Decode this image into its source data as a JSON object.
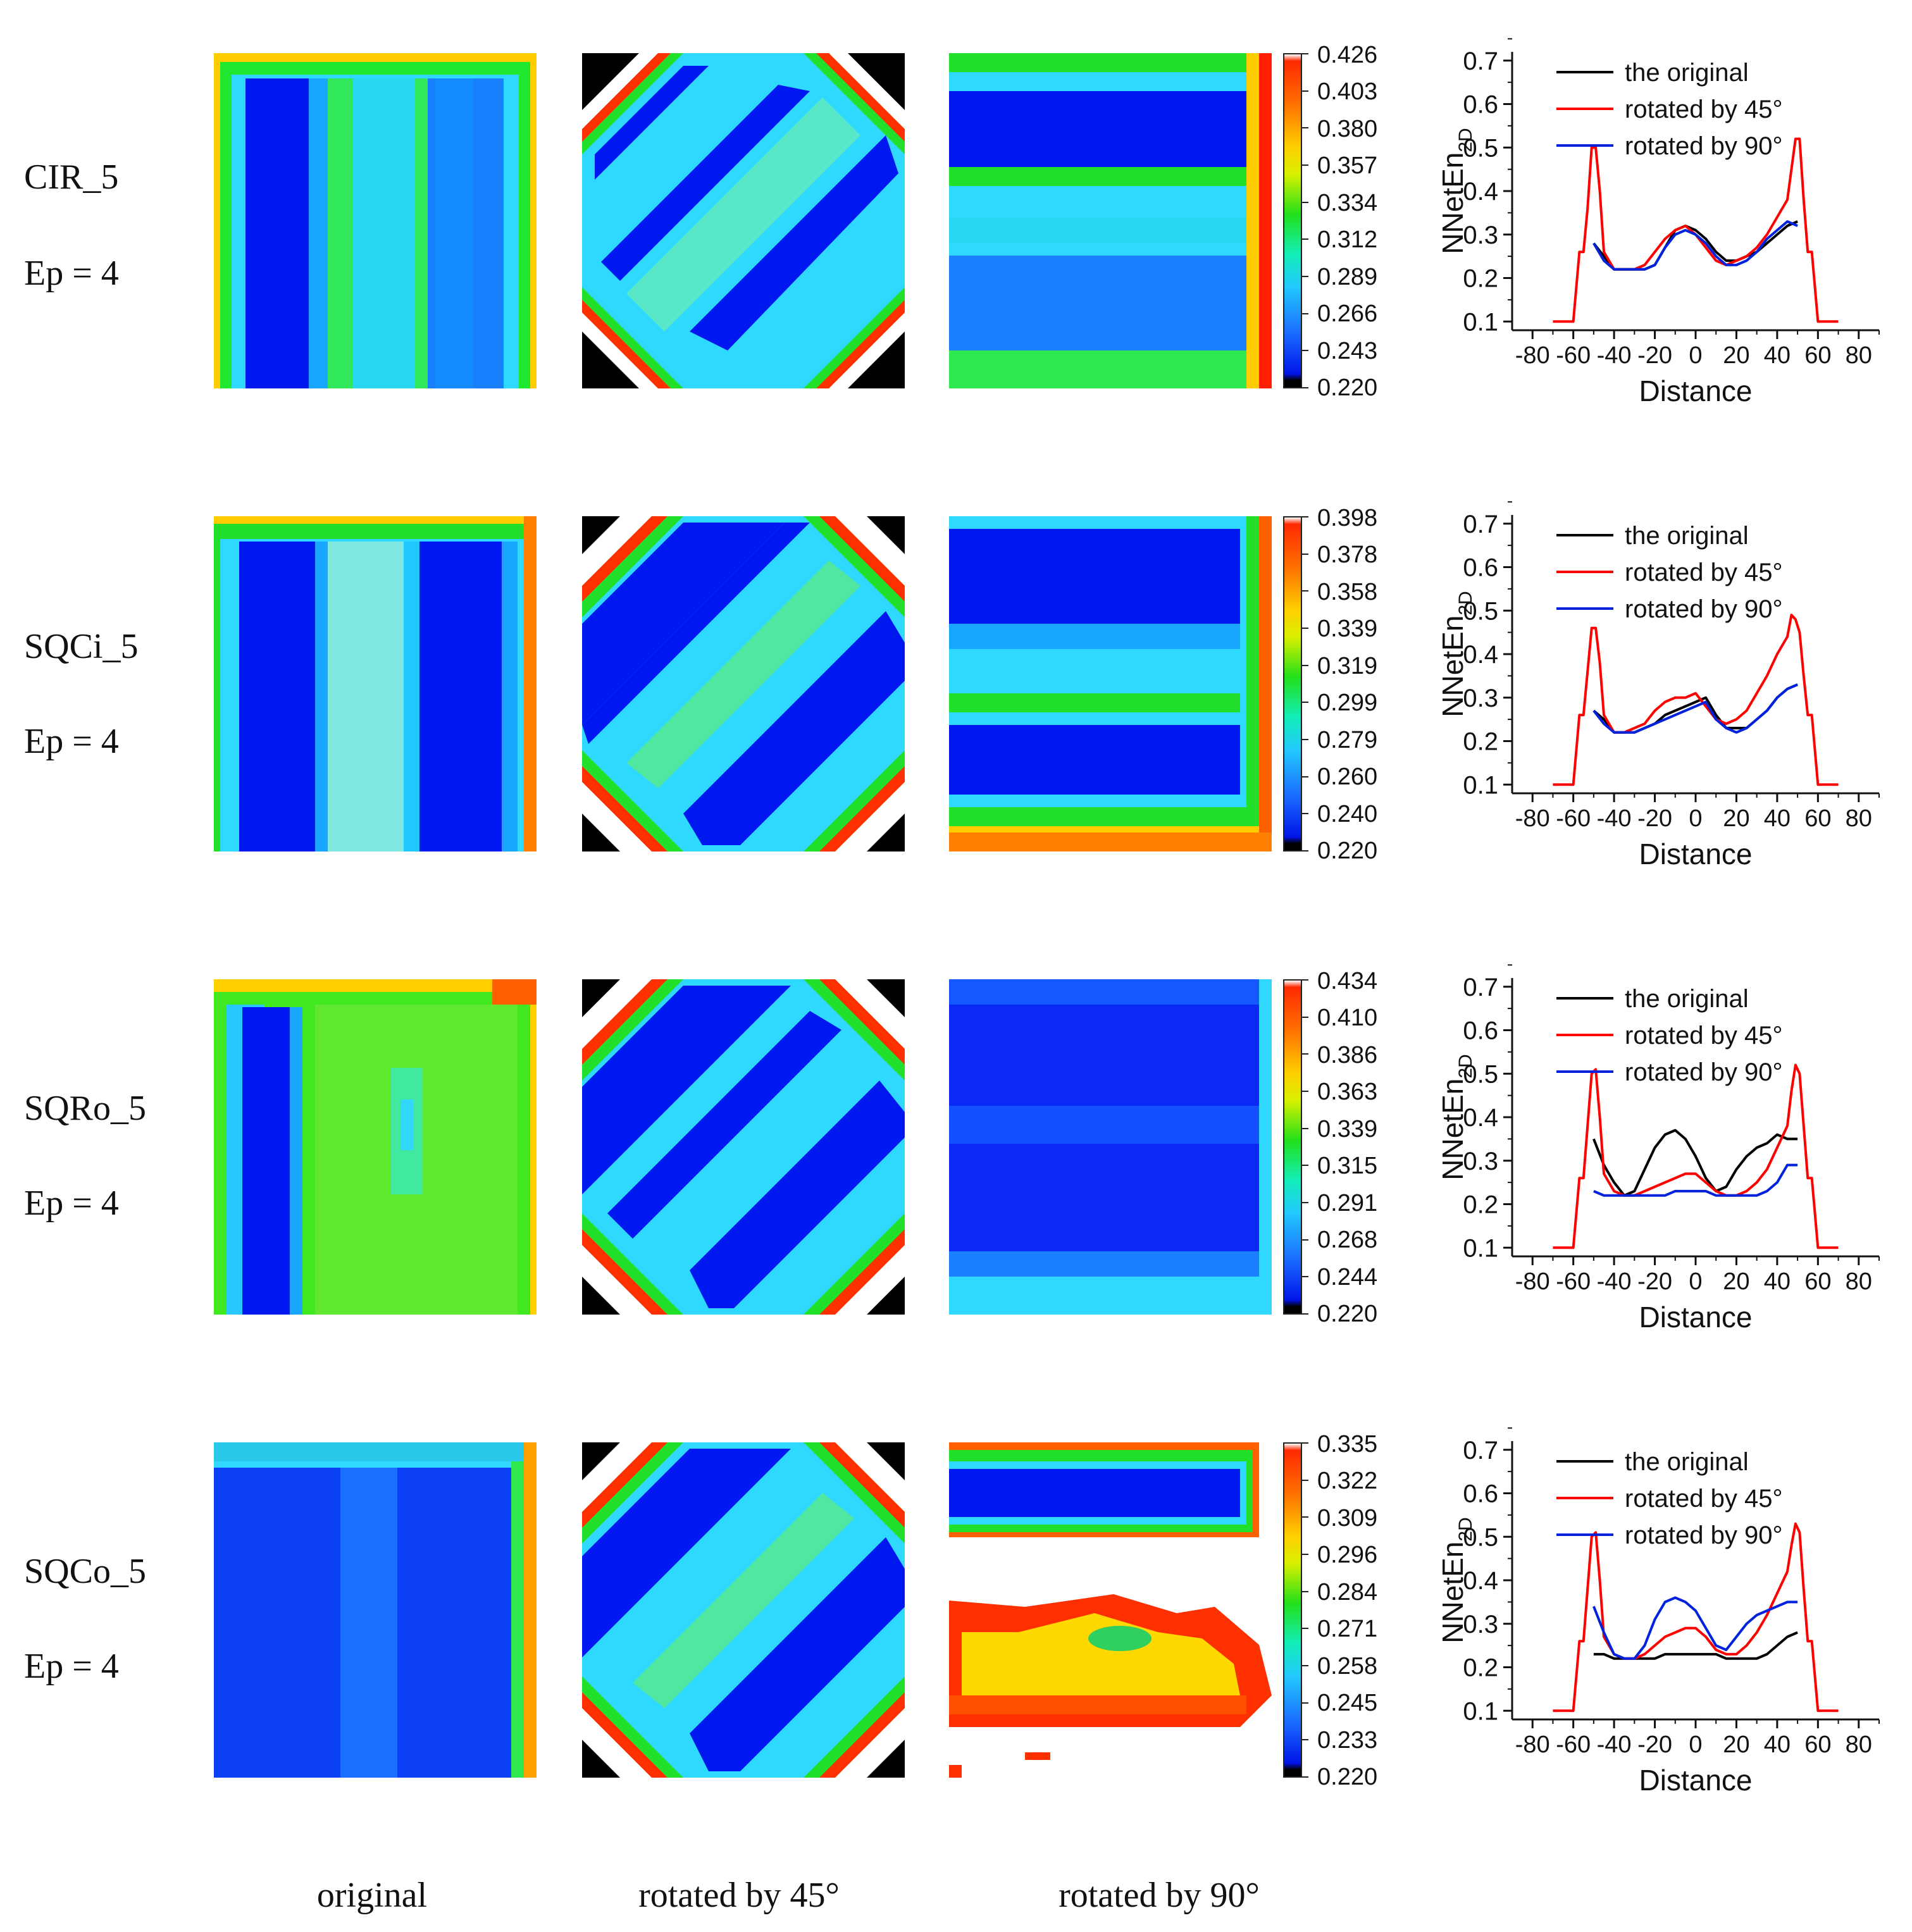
{
  "column_labels": [
    "original",
    "rotated by 45°",
    "rotated by 90°"
  ],
  "rows": [
    {
      "name": "CIR_5",
      "ep": "Ep = 4",
      "colorbar": [
        "0.426",
        "0.403",
        "0.380",
        "0.357",
        "0.334",
        "0.312",
        "0.289",
        "0.266",
        "0.243",
        "0.220"
      ]
    },
    {
      "name": "SQCi_5",
      "ep": "Ep = 4",
      "colorbar": [
        "0.398",
        "0.378",
        "0.358",
        "0.339",
        "0.319",
        "0.299",
        "0.279",
        "0.260",
        "0.240",
        "0.220"
      ]
    },
    {
      "name": "SQRo_5",
      "ep": "Ep = 4",
      "colorbar": [
        "0.434",
        "0.410",
        "0.386",
        "0.363",
        "0.339",
        "0.315",
        "0.291",
        "0.268",
        "0.244",
        "0.220"
      ]
    },
    {
      "name": "SQCo_5",
      "ep": "Ep = 4",
      "colorbar": [
        "0.335",
        "0.322",
        "0.309",
        "0.296",
        "0.284",
        "0.271",
        "0.258",
        "0.245",
        "0.233",
        "0.220"
      ]
    }
  ],
  "colors": {
    "original": "#000000",
    "rot45": "#ff0000",
    "rot90": "#0022dd"
  },
  "chart_data": [
    {
      "type": "line",
      "title": "CIR_5 Ep = 4",
      "xlabel": "Distance",
      "ylabel": "NNetEn",
      "ylabel_sub": "2D",
      "xticks": [
        "-80",
        "-60",
        "-40",
        "-20",
        "0",
        "20",
        "40",
        "60",
        "80"
      ],
      "yticks": [
        "0.1",
        "0.2",
        "0.3",
        "0.4",
        "0.5",
        "0.6",
        "0.7"
      ],
      "xlim": [
        -90,
        90
      ],
      "ylim": [
        0.08,
        0.72
      ],
      "series": [
        {
          "name": "the original",
          "color": "#000000",
          "x": [
            -50,
            -45,
            -40,
            -35,
            -30,
            -25,
            -20,
            -15,
            -10,
            -5,
            0,
            5,
            10,
            15,
            20,
            25,
            30,
            35,
            40,
            45,
            50
          ],
          "y": [
            0.28,
            0.25,
            0.22,
            0.22,
            0.22,
            0.22,
            0.23,
            0.27,
            0.31,
            0.32,
            0.31,
            0.29,
            0.26,
            0.24,
            0.24,
            0.25,
            0.26,
            0.28,
            0.3,
            0.32,
            0.33
          ]
        },
        {
          "name": "rotated by 45°",
          "color": "#ff0000",
          "x": [
            -70,
            -60,
            -57,
            -55,
            -53,
            -51,
            -49,
            -47,
            -45,
            -40,
            -35,
            -30,
            -25,
            -20,
            -15,
            -10,
            -5,
            0,
            5,
            10,
            15,
            20,
            25,
            30,
            35,
            40,
            45,
            47,
            49,
            51,
            53,
            55,
            57,
            60,
            70
          ],
          "y": [
            0.1,
            0.1,
            0.26,
            0.26,
            0.36,
            0.5,
            0.5,
            0.4,
            0.26,
            0.22,
            0.22,
            0.22,
            0.23,
            0.26,
            0.29,
            0.31,
            0.32,
            0.3,
            0.27,
            0.24,
            0.23,
            0.24,
            0.25,
            0.27,
            0.3,
            0.34,
            0.38,
            0.45,
            0.52,
            0.52,
            0.38,
            0.26,
            0.26,
            0.1,
            0.1
          ]
        },
        {
          "name": "rotated by 90°",
          "color": "#0022dd",
          "x": [
            -50,
            -45,
            -40,
            -35,
            -30,
            -25,
            -20,
            -15,
            -10,
            -5,
            0,
            5,
            10,
            15,
            20,
            25,
            30,
            35,
            40,
            45,
            50
          ],
          "y": [
            0.28,
            0.24,
            0.22,
            0.22,
            0.22,
            0.22,
            0.23,
            0.27,
            0.3,
            0.31,
            0.3,
            0.28,
            0.25,
            0.23,
            0.23,
            0.24,
            0.26,
            0.29,
            0.31,
            0.33,
            0.32
          ]
        }
      ]
    },
    {
      "type": "line",
      "title": "SQCi_5 Ep = 4",
      "xlabel": "Distance",
      "ylabel": "NNetEn",
      "ylabel_sub": "2D",
      "xticks": [
        "-80",
        "-60",
        "-40",
        "-20",
        "0",
        "20",
        "40",
        "60",
        "80"
      ],
      "yticks": [
        "0.1",
        "0.2",
        "0.3",
        "0.4",
        "0.5",
        "0.6",
        "0.7"
      ],
      "xlim": [
        -90,
        90
      ],
      "ylim": [
        0.08,
        0.72
      ],
      "series": [
        {
          "name": "the original",
          "color": "#000000",
          "x": [
            -50,
            -45,
            -40,
            -35,
            -30,
            -25,
            -20,
            -15,
            -10,
            -5,
            0,
            5,
            10,
            15,
            20,
            25,
            30,
            35,
            40,
            45,
            50
          ],
          "y": [
            0.27,
            0.25,
            0.22,
            0.22,
            0.22,
            0.23,
            0.24,
            0.26,
            0.27,
            0.28,
            0.29,
            0.3,
            0.26,
            0.23,
            0.23,
            0.23,
            0.25,
            0.27,
            0.3,
            0.32,
            0.33
          ]
        },
        {
          "name": "rotated by 45°",
          "color": "#ff0000",
          "x": [
            -70,
            -60,
            -57,
            -55,
            -53,
            -51,
            -49,
            -47,
            -45,
            -40,
            -35,
            -30,
            -25,
            -20,
            -15,
            -10,
            -5,
            0,
            5,
            10,
            15,
            20,
            25,
            30,
            35,
            40,
            45,
            47,
            49,
            51,
            53,
            55,
            57,
            60,
            70
          ],
          "y": [
            0.1,
            0.1,
            0.26,
            0.26,
            0.36,
            0.46,
            0.46,
            0.38,
            0.26,
            0.22,
            0.22,
            0.23,
            0.24,
            0.27,
            0.29,
            0.3,
            0.3,
            0.31,
            0.28,
            0.25,
            0.24,
            0.25,
            0.27,
            0.31,
            0.35,
            0.4,
            0.44,
            0.49,
            0.48,
            0.45,
            0.35,
            0.26,
            0.26,
            0.1,
            0.1
          ]
        },
        {
          "name": "rotated by 90°",
          "color": "#0022dd",
          "x": [
            -50,
            -45,
            -40,
            -35,
            -30,
            -25,
            -20,
            -15,
            -10,
            -5,
            0,
            5,
            10,
            15,
            20,
            25,
            30,
            35,
            40,
            45,
            50
          ],
          "y": [
            0.27,
            0.24,
            0.22,
            0.22,
            0.22,
            0.23,
            0.24,
            0.25,
            0.26,
            0.27,
            0.28,
            0.29,
            0.25,
            0.23,
            0.22,
            0.23,
            0.25,
            0.27,
            0.3,
            0.32,
            0.33
          ]
        }
      ]
    },
    {
      "type": "line",
      "title": "SQRo_5 Ep = 4",
      "xlabel": "Distance",
      "ylabel": "NNetEn",
      "ylabel_sub": "2D",
      "xticks": [
        "-80",
        "-60",
        "-40",
        "-20",
        "0",
        "20",
        "40",
        "60",
        "80"
      ],
      "yticks": [
        "0.1",
        "0.2",
        "0.3",
        "0.4",
        "0.5",
        "0.6",
        "0.7"
      ],
      "xlim": [
        -90,
        90
      ],
      "ylim": [
        0.08,
        0.72
      ],
      "series": [
        {
          "name": "the original",
          "color": "#000000",
          "x": [
            -50,
            -45,
            -40,
            -35,
            -30,
            -25,
            -20,
            -15,
            -10,
            -5,
            0,
            5,
            10,
            15,
            20,
            25,
            30,
            35,
            40,
            45,
            50
          ],
          "y": [
            0.35,
            0.29,
            0.25,
            0.22,
            0.23,
            0.28,
            0.33,
            0.36,
            0.37,
            0.35,
            0.31,
            0.26,
            0.23,
            0.24,
            0.28,
            0.31,
            0.33,
            0.34,
            0.36,
            0.35,
            0.35
          ]
        },
        {
          "name": "rotated by 45°",
          "color": "#ff0000",
          "x": [
            -70,
            -60,
            -57,
            -55,
            -53,
            -51,
            -49,
            -47,
            -45,
            -40,
            -35,
            -30,
            -25,
            -20,
            -15,
            -10,
            -5,
            0,
            5,
            10,
            15,
            20,
            25,
            30,
            35,
            40,
            45,
            47,
            49,
            51,
            53,
            55,
            57,
            60,
            70
          ],
          "y": [
            0.1,
            0.1,
            0.26,
            0.26,
            0.38,
            0.5,
            0.51,
            0.4,
            0.27,
            0.23,
            0.22,
            0.22,
            0.23,
            0.24,
            0.25,
            0.26,
            0.27,
            0.27,
            0.25,
            0.23,
            0.22,
            0.22,
            0.23,
            0.25,
            0.28,
            0.33,
            0.38,
            0.46,
            0.52,
            0.5,
            0.38,
            0.26,
            0.26,
            0.1,
            0.1
          ]
        },
        {
          "name": "rotated by 90°",
          "color": "#0022dd",
          "x": [
            -50,
            -45,
            -40,
            -35,
            -30,
            -25,
            -20,
            -15,
            -10,
            -5,
            0,
            5,
            10,
            15,
            20,
            25,
            30,
            35,
            40,
            45,
            50
          ],
          "y": [
            0.23,
            0.22,
            0.22,
            0.22,
            0.22,
            0.22,
            0.22,
            0.22,
            0.23,
            0.23,
            0.23,
            0.23,
            0.22,
            0.22,
            0.22,
            0.22,
            0.22,
            0.23,
            0.25,
            0.29,
            0.29
          ]
        }
      ]
    },
    {
      "type": "line",
      "title": "SQCo_5 Ep = 4",
      "xlabel": "Distance",
      "ylabel": "NNetEn",
      "ylabel_sub": "2D",
      "xticks": [
        "-80",
        "-60",
        "-40",
        "-20",
        "0",
        "20",
        "40",
        "60",
        "80"
      ],
      "yticks": [
        "0.1",
        "0.2",
        "0.3",
        "0.4",
        "0.5",
        "0.6",
        "0.7"
      ],
      "xlim": [
        -90,
        90
      ],
      "ylim": [
        0.08,
        0.72
      ],
      "series": [
        {
          "name": "the original",
          "color": "#000000",
          "x": [
            -50,
            -45,
            -40,
            -35,
            -30,
            -25,
            -20,
            -15,
            -10,
            -5,
            0,
            5,
            10,
            15,
            20,
            25,
            30,
            35,
            40,
            45,
            50
          ],
          "y": [
            0.23,
            0.23,
            0.22,
            0.22,
            0.22,
            0.22,
            0.22,
            0.23,
            0.23,
            0.23,
            0.23,
            0.23,
            0.23,
            0.22,
            0.22,
            0.22,
            0.22,
            0.23,
            0.25,
            0.27,
            0.28
          ]
        },
        {
          "name": "rotated by 45°",
          "color": "#ff0000",
          "x": [
            -70,
            -60,
            -57,
            -55,
            -53,
            -51,
            -49,
            -47,
            -45,
            -40,
            -35,
            -30,
            -25,
            -20,
            -15,
            -10,
            -5,
            0,
            5,
            10,
            15,
            20,
            25,
            30,
            35,
            40,
            45,
            47,
            49,
            51,
            53,
            55,
            57,
            60,
            70
          ],
          "y": [
            0.1,
            0.1,
            0.26,
            0.26,
            0.38,
            0.5,
            0.51,
            0.4,
            0.27,
            0.23,
            0.22,
            0.22,
            0.23,
            0.25,
            0.27,
            0.28,
            0.29,
            0.29,
            0.27,
            0.24,
            0.23,
            0.23,
            0.25,
            0.28,
            0.32,
            0.37,
            0.42,
            0.48,
            0.53,
            0.51,
            0.38,
            0.26,
            0.26,
            0.1,
            0.1
          ]
        },
        {
          "name": "rotated by 90°",
          "color": "#0022dd",
          "x": [
            -50,
            -45,
            -40,
            -35,
            -30,
            -25,
            -20,
            -15,
            -10,
            -5,
            0,
            5,
            10,
            15,
            20,
            25,
            30,
            35,
            40,
            45,
            50
          ],
          "y": [
            0.34,
            0.28,
            0.23,
            0.22,
            0.22,
            0.25,
            0.31,
            0.35,
            0.36,
            0.35,
            0.33,
            0.29,
            0.25,
            0.24,
            0.27,
            0.3,
            0.32,
            0.33,
            0.34,
            0.35,
            0.35
          ]
        }
      ]
    }
  ]
}
